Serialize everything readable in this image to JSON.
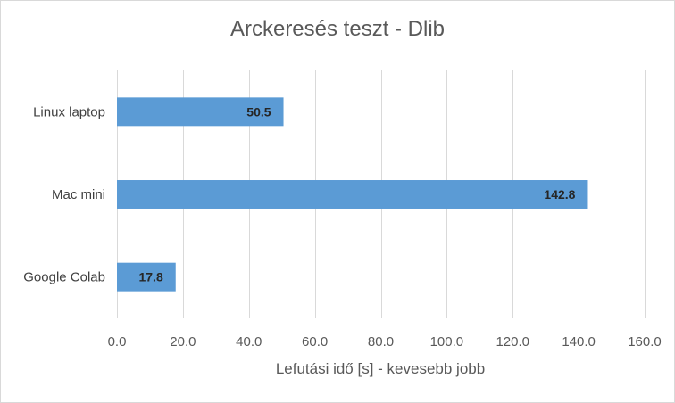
{
  "chart_data": {
    "type": "bar",
    "orientation": "horizontal",
    "title": "Arckeresés teszt - Dlib",
    "xlabel": "Lefutási idő [s] - kevesebb jobb",
    "ylabel": "",
    "categories": [
      "Linux laptop",
      "Mac mini",
      "Google Colab"
    ],
    "values": [
      50.5,
      142.8,
      17.8
    ],
    "data_labels": [
      "50.5",
      "142.8",
      "17.8"
    ],
    "xlim": [
      0,
      160
    ],
    "x_ticks": [
      "0.0",
      "20.0",
      "40.0",
      "60.0",
      "80.0",
      "100.0",
      "120.0",
      "140.0",
      "160.0"
    ],
    "grid": "vertical",
    "legend": "none",
    "colors": {
      "bar": "#5b9bd5",
      "grid": "#d9d9d9"
    }
  }
}
